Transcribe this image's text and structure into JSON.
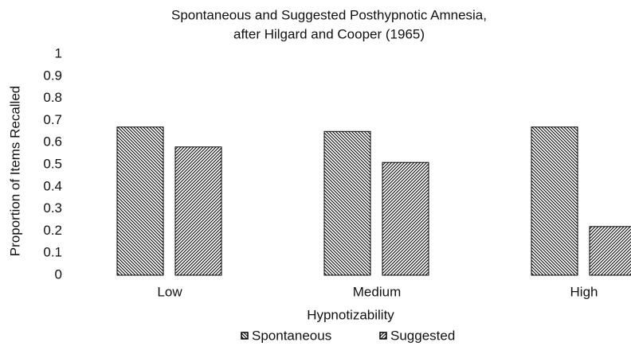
{
  "chart_data": {
    "type": "bar",
    "title": [
      "Spontaneous and Suggested Posthypnotic Amnesia,",
      "after Hilgard and Cooper (1965)"
    ],
    "x_label": "Hypnotizability",
    "y_label": "Proportion of Items Recalled",
    "categories": [
      "Low",
      "Medium",
      "High"
    ],
    "series": [
      {
        "name": "Spontaneous",
        "color": "#000000",
        "hatch": "backslash",
        "values": [
          0.67,
          0.65,
          0.67
        ]
      },
      {
        "name": "Suggested",
        "color": "#000000",
        "hatch": "slash",
        "values": [
          0.58,
          0.51,
          0.22
        ]
      }
    ],
    "ylim": [
      0,
      1
    ],
    "yticks": [
      0,
      0.1,
      0.2,
      0.3,
      0.4,
      0.5,
      0.6,
      0.7,
      0.8,
      0.9,
      1
    ],
    "grid": false,
    "legend": "bottom"
  }
}
